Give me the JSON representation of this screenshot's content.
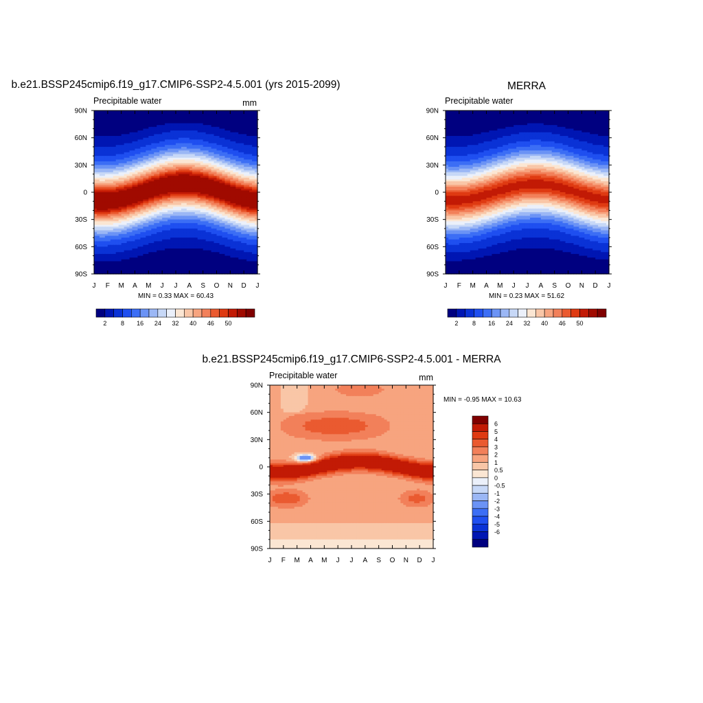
{
  "chart_data": [
    {
      "type": "heatmap",
      "title": "b.e21.BSSP245cmip6.f19_g17.CMIP6-SSP2-4.5.001 (yrs 2015-2099)",
      "left_label": "Precipitable water",
      "units": "mm",
      "stats_text": "MIN =   0.33 MAX =  60.43",
      "x_ticks": [
        "J",
        "F",
        "M",
        "A",
        "M",
        "J",
        "J",
        "A",
        "S",
        "O",
        "N",
        "D",
        "J"
      ],
      "y_ticks": [
        "90N",
        "60N",
        "30N",
        "0",
        "30S",
        "60S",
        "90S"
      ],
      "y_tick_lats": [
        90,
        60,
        30,
        0,
        -30,
        -60,
        -90
      ],
      "colorbar": {
        "orientation": "horizontal",
        "levels": [
          2,
          4,
          8,
          12,
          16,
          20,
          24,
          28,
          32,
          36,
          40,
          43,
          46,
          48,
          50,
          52
        ],
        "labels": [
          "2",
          "8",
          "16",
          "24",
          "32",
          "40",
          "46",
          "50"
        ],
        "colors": [
          "#000080",
          "#0016b3",
          "#0a32d6",
          "#1f4ff0",
          "#3c6ef5",
          "#6b93f5",
          "#9bb7f5",
          "#c7d8f7",
          "#ebf0fa",
          "#fbe6d3",
          "#f9c6a7",
          "#f7a47f",
          "#f2805a",
          "#ea5a30",
          "#df3a12",
          "#c21a05",
          "#a00a00",
          "#800000"
        ]
      },
      "field": {
        "min": 0.33,
        "max": 60.43,
        "equator_max": 54,
        "itcz_amplitude_deg": 10
      }
    },
    {
      "type": "heatmap",
      "title": "MERRA",
      "left_label": "Precipitable water",
      "units": "",
      "stats_text": "MIN =   0.23 MAX =  51.62",
      "x_ticks": [
        "J",
        "F",
        "M",
        "A",
        "M",
        "J",
        "J",
        "A",
        "S",
        "O",
        "N",
        "D",
        "J"
      ],
      "y_ticks": [
        "90N",
        "60N",
        "30N",
        "0",
        "30S",
        "60S",
        "90S"
      ],
      "y_tick_lats": [
        90,
        60,
        30,
        0,
        -30,
        -60,
        -90
      ],
      "colorbar": {
        "orientation": "horizontal",
        "levels": [
          2,
          4,
          8,
          12,
          16,
          20,
          24,
          28,
          32,
          36,
          40,
          43,
          46,
          48,
          50,
          52
        ],
        "labels": [
          "2",
          "8",
          "16",
          "24",
          "32",
          "40",
          "46",
          "50"
        ],
        "colors": [
          "#000080",
          "#0016b3",
          "#0a32d6",
          "#1f4ff0",
          "#3c6ef5",
          "#6b93f5",
          "#9bb7f5",
          "#c7d8f7",
          "#ebf0fa",
          "#fbe6d3",
          "#f9c6a7",
          "#f7a47f",
          "#f2805a",
          "#ea5a30",
          "#df3a12",
          "#c21a05",
          "#a00a00",
          "#800000"
        ]
      },
      "field": {
        "min": 0.23,
        "max": 51.62,
        "equator_max": 49,
        "itcz_amplitude_deg": 9
      }
    },
    {
      "type": "heatmap",
      "title": "b.e21.BSSP245cmip6.f19_g17.CMIP6-SSP2-4.5.001 - MERRA",
      "left_label": "Precipitable water",
      "units": "mm",
      "stats_text": "MIN =  -0.95 MAX =  10.63",
      "x_ticks": [
        "J",
        "F",
        "M",
        "A",
        "M",
        "J",
        "J",
        "A",
        "S",
        "O",
        "N",
        "D",
        "J"
      ],
      "y_ticks": [
        "90N",
        "60N",
        "30N",
        "0",
        "30S",
        "60S",
        "90S"
      ],
      "y_tick_lats": [
        90,
        60,
        30,
        0,
        -30,
        -60,
        -90
      ],
      "colorbar": {
        "orientation": "vertical",
        "levels": [
          -6,
          -5,
          -4,
          -3,
          -2,
          -1,
          -0.5,
          0,
          0.5,
          1,
          2,
          3,
          4,
          5,
          6
        ],
        "labels": [
          "-6",
          "-5",
          "-4",
          "-3",
          "-2",
          "-1",
          "-0.5",
          "0",
          "0.5",
          "1",
          "2",
          "3",
          "4",
          "5",
          "6"
        ],
        "colors": [
          "#000080",
          "#0016b3",
          "#0a32d6",
          "#1f4ff0",
          "#3c6ef5",
          "#6b93f5",
          "#9bb7f5",
          "#c7d8f7",
          "#ebf0fa",
          "#fbe6d3",
          "#f9c6a7",
          "#f7a47f",
          "#f2805a",
          "#ea5a30",
          "#df3a12",
          "#c21a05",
          "#800000"
        ]
      },
      "field": {
        "min": -0.95,
        "max": 10.63
      }
    }
  ]
}
